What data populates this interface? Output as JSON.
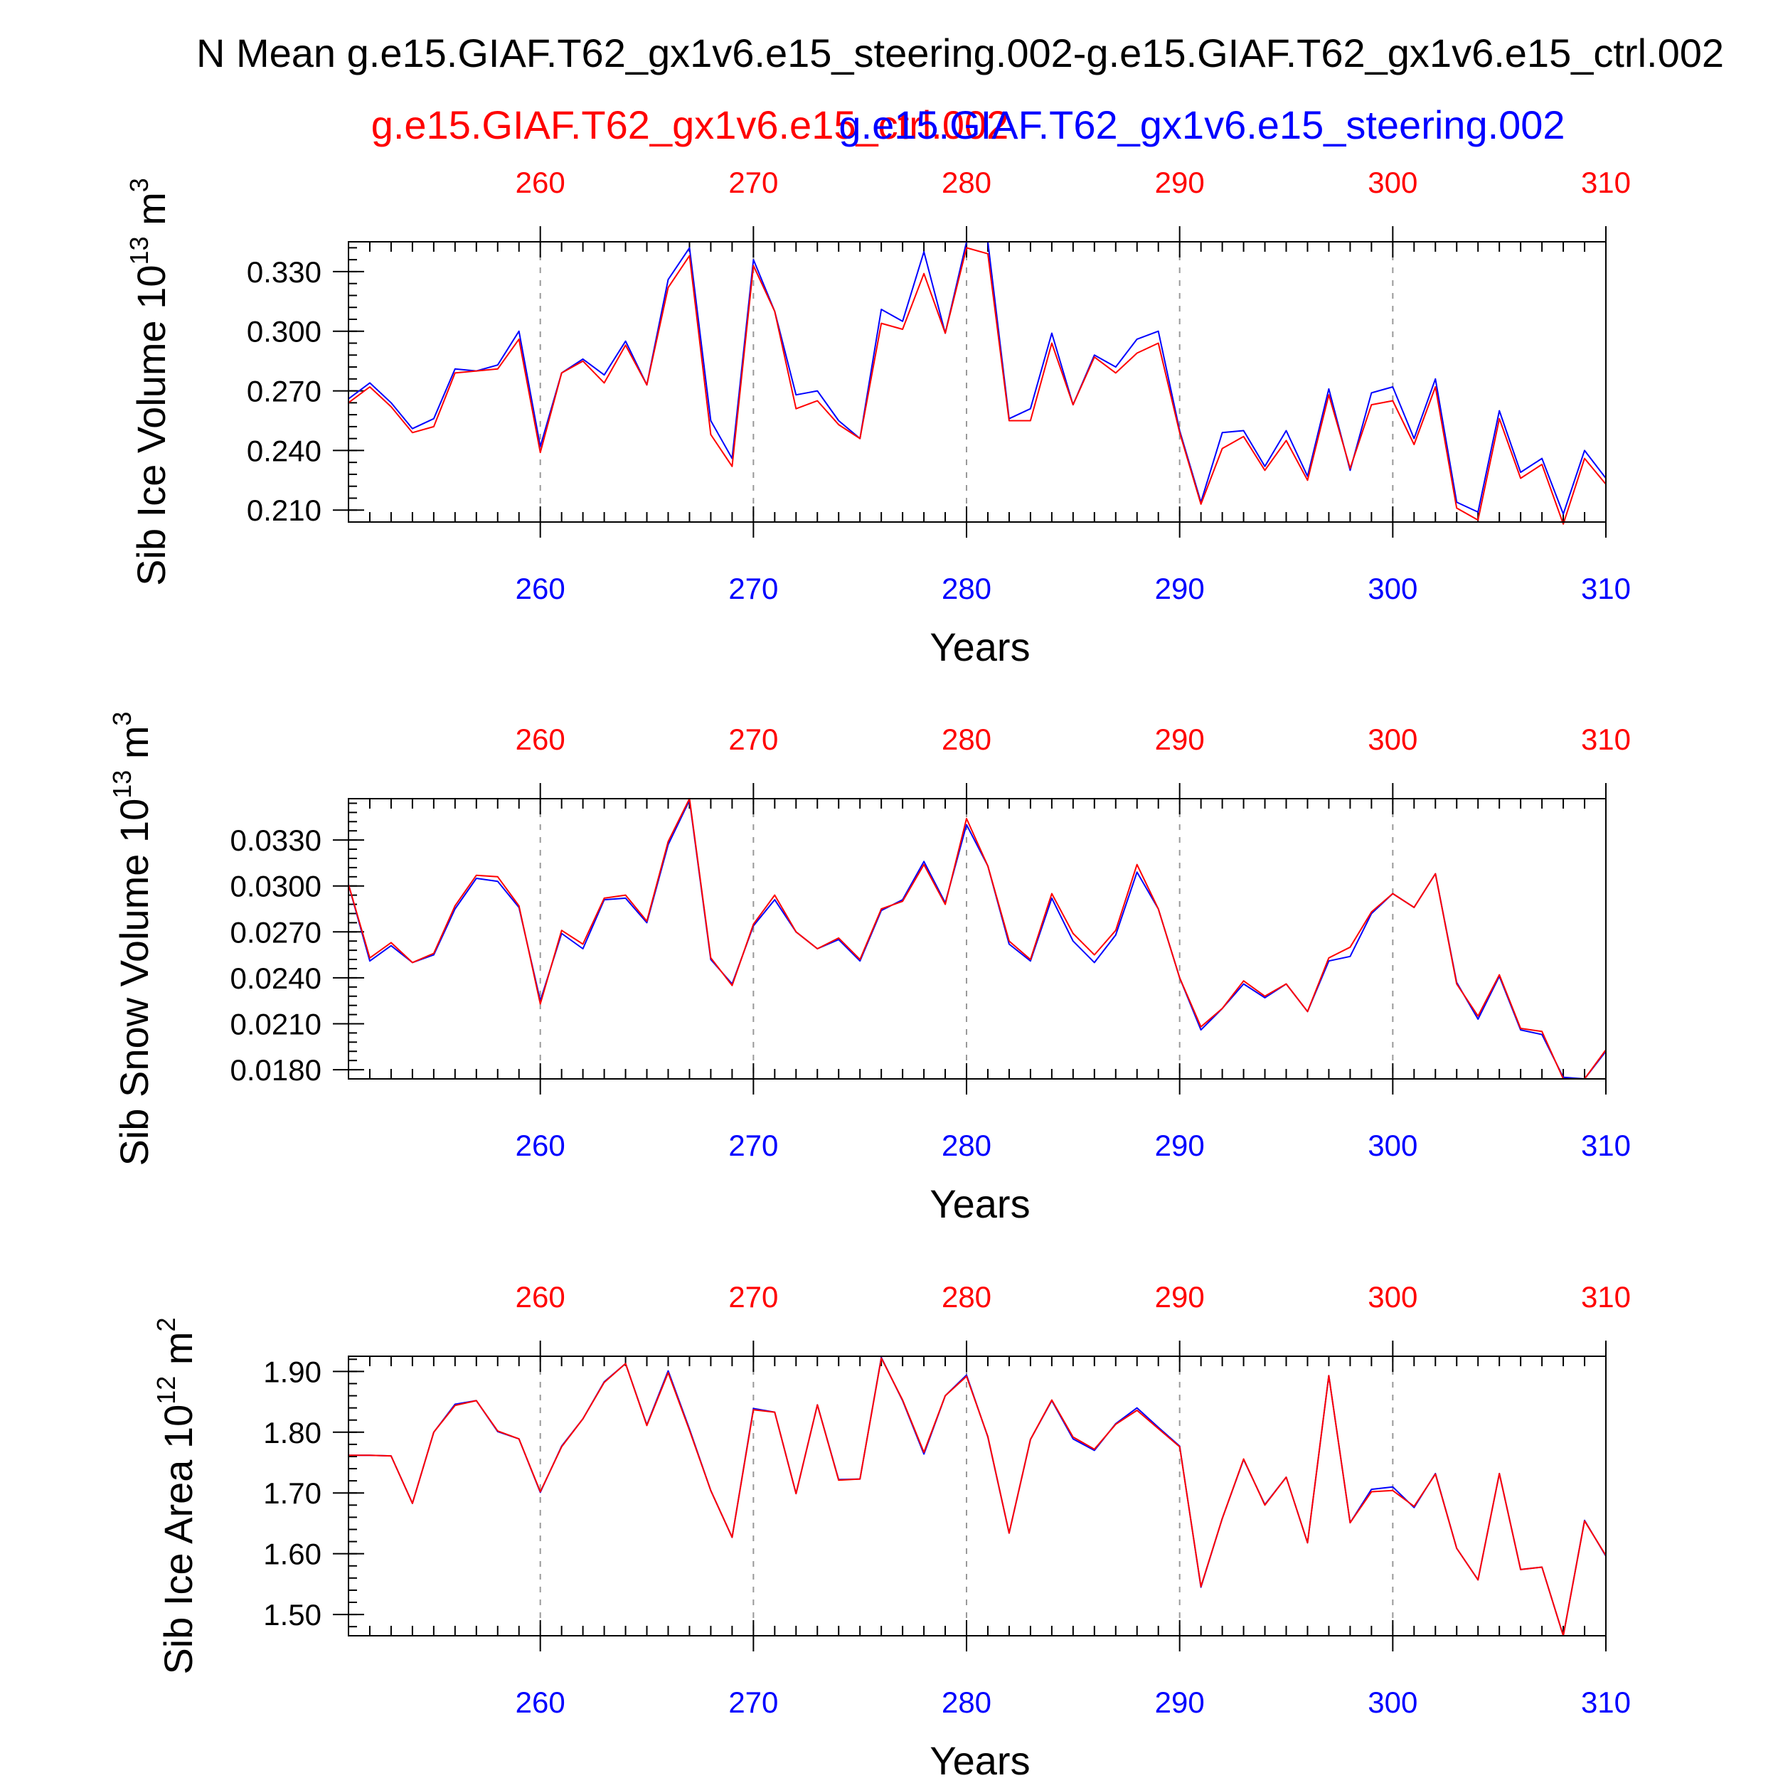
{
  "header": {
    "title": "N Mean g.e15.GIAF.T62_gx1v6.e15_steering.002-g.e15.GIAF.T62_gx1v6.e15_ctrl.002",
    "ctrl_case_label": "g.e15.GIAF.T62_gx1v6.e15_ctrl.002",
    "steering_case_label": "g.e15.GIAF.T62_gx1v6.e15_steering.002"
  },
  "colors": {
    "ctrl": "#ff0000",
    "steering": "#0000ff",
    "axis": "#000000",
    "grid": "#999999"
  },
  "chart_data": [
    {
      "type": "line",
      "title": "",
      "xlabel": "Years",
      "ylabel": "Sib Ice Volume 10",
      "ylabel_exp": "13",
      "ylabel_unit": " m",
      "ylabel_unit_exp": "3",
      "x_start": 251,
      "xlim": [
        251,
        310
      ],
      "ylim": [
        0.204,
        0.345
      ],
      "yticks": [
        0.21,
        0.24,
        0.27,
        0.3,
        0.33
      ],
      "ytick_labels": [
        "0.210",
        "0.240",
        "0.270",
        "0.300",
        "0.330"
      ],
      "y_minor_step": 0.006,
      "xticks": [
        260,
        270,
        280,
        290,
        300,
        310
      ],
      "xtick_labels": [
        "260",
        "270",
        "280",
        "290",
        "300",
        "310"
      ],
      "grid_x": true,
      "series": [
        {
          "name": "g.e15.GIAF.T62_gx1v6.e15_ctrl.002",
          "color": "#ff0000",
          "values": [
            0.264,
            0.272,
            0.262,
            0.249,
            0.252,
            0.279,
            0.28,
            0.281,
            0.296,
            0.239,
            0.279,
            0.285,
            0.274,
            0.293,
            0.273,
            0.322,
            0.338,
            0.248,
            0.232,
            0.333,
            0.31,
            0.261,
            0.265,
            0.253,
            0.246,
            0.304,
            0.301,
            0.329,
            0.299,
            0.342,
            0.339,
            0.255,
            0.255,
            0.294,
            0.263,
            0.287,
            0.279,
            0.289,
            0.294,
            0.249,
            0.213,
            0.241,
            0.247,
            0.23,
            0.245,
            0.225,
            0.268,
            0.231,
            0.263,
            0.265,
            0.243,
            0.272,
            0.211,
            0.205,
            0.256,
            0.226,
            0.233,
            0.203,
            0.236,
            0.223
          ]
        },
        {
          "name": "g.e15.GIAF.T62_gx1v6.e15_steering.002",
          "color": "#0000ff",
          "values": [
            0.266,
            0.274,
            0.264,
            0.251,
            0.256,
            0.281,
            0.28,
            0.283,
            0.3,
            0.242,
            0.279,
            0.286,
            0.278,
            0.295,
            0.273,
            0.326,
            0.342,
            0.255,
            0.236,
            0.336,
            0.31,
            0.268,
            0.27,
            0.255,
            0.246,
            0.311,
            0.305,
            0.34,
            0.299,
            0.345,
            0.345,
            0.256,
            0.261,
            0.299,
            0.263,
            0.288,
            0.282,
            0.296,
            0.3,
            0.25,
            0.214,
            0.249,
            0.25,
            0.232,
            0.25,
            0.227,
            0.271,
            0.23,
            0.269,
            0.272,
            0.246,
            0.276,
            0.214,
            0.209,
            0.26,
            0.229,
            0.236,
            0.208,
            0.24,
            0.226
          ]
        }
      ]
    },
    {
      "type": "line",
      "title": "",
      "xlabel": "Years",
      "ylabel": "Sib Snow Volume 10",
      "ylabel_exp": "13",
      "ylabel_unit": " m",
      "ylabel_unit_exp": "3",
      "x_start": 251,
      "xlim": [
        251,
        310
      ],
      "ylim": [
        0.0174,
        0.0357
      ],
      "yticks": [
        0.018,
        0.021,
        0.024,
        0.027,
        0.03,
        0.033
      ],
      "ytick_labels": [
        "0.0180",
        "0.0210",
        "0.0240",
        "0.0270",
        "0.0300",
        "0.0330"
      ],
      "y_minor_step": 0.0006,
      "xticks": [
        260,
        270,
        280,
        290,
        300,
        310
      ],
      "xtick_labels": [
        "260",
        "270",
        "280",
        "290",
        "300",
        "310"
      ],
      "grid_x": true,
      "series": [
        {
          "name": "g.e15.GIAF.T62_gx1v6.e15_ctrl.002",
          "color": "#ff0000",
          "values": [
            0.0301,
            0.0253,
            0.0263,
            0.025,
            0.0256,
            0.0287,
            0.0307,
            0.0306,
            0.0287,
            0.0223,
            0.0271,
            0.0262,
            0.0292,
            0.0294,
            0.0277,
            0.0329,
            0.0357,
            0.0253,
            0.0235,
            0.0275,
            0.0294,
            0.027,
            0.0259,
            0.0266,
            0.0252,
            0.0285,
            0.029,
            0.0314,
            0.0288,
            0.0344,
            0.0313,
            0.0264,
            0.0252,
            0.0295,
            0.0269,
            0.0255,
            0.0271,
            0.0314,
            0.0285,
            0.024,
            0.0208,
            0.022,
            0.0238,
            0.0228,
            0.0236,
            0.0218,
            0.0253,
            0.026,
            0.0283,
            0.0295,
            0.0286,
            0.0308,
            0.0236,
            0.0215,
            0.0242,
            0.0207,
            0.0205,
            0.0174,
            0.0174,
            0.0193
          ]
        },
        {
          "name": "g.e15.GIAF.T62_gx1v6.e15_steering.002",
          "color": "#0000ff",
          "values": [
            0.0301,
            0.0251,
            0.0261,
            0.025,
            0.0255,
            0.0285,
            0.0305,
            0.0303,
            0.0286,
            0.0225,
            0.0269,
            0.0259,
            0.0291,
            0.0292,
            0.0276,
            0.0327,
            0.0356,
            0.0252,
            0.0236,
            0.0274,
            0.0291,
            0.027,
            0.0259,
            0.0265,
            0.0251,
            0.0284,
            0.0291,
            0.0316,
            0.0289,
            0.034,
            0.0313,
            0.0262,
            0.0251,
            0.0292,
            0.0264,
            0.025,
            0.0268,
            0.0309,
            0.0285,
            0.024,
            0.0206,
            0.022,
            0.0236,
            0.0227,
            0.0236,
            0.0218,
            0.0251,
            0.0254,
            0.0282,
            0.0295,
            0.0286,
            0.0308,
            0.0237,
            0.0213,
            0.0241,
            0.0206,
            0.0203,
            0.0175,
            0.0174,
            0.0192
          ]
        }
      ]
    },
    {
      "type": "line",
      "title": "",
      "xlabel": "Years",
      "ylabel": "Sib Ice Area 10",
      "ylabel_exp": "12",
      "ylabel_unit": " m",
      "ylabel_unit_exp": "2",
      "x_start": 251,
      "xlim": [
        251,
        310
      ],
      "ylim": [
        1.465,
        1.925
      ],
      "yticks": [
        1.5,
        1.6,
        1.7,
        1.8,
        1.9
      ],
      "ytick_labels": [
        "1.50",
        "1.60",
        "1.70",
        "1.80",
        "1.90"
      ],
      "y_minor_step": 0.02,
      "xticks": [
        260,
        270,
        280,
        290,
        300,
        310
      ],
      "xtick_labels": [
        "260",
        "270",
        "280",
        "290",
        "300",
        "310"
      ],
      "grid_x": true,
      "series": [
        {
          "name": "g.e15.GIAF.T62_gx1v6.e15_ctrl.002",
          "color": "#ff0000",
          "values": [
            1.762,
            1.762,
            1.761,
            1.683,
            1.8,
            1.844,
            1.852,
            1.802,
            1.789,
            1.702,
            1.776,
            1.822,
            1.882,
            1.913,
            1.811,
            1.898,
            1.803,
            1.704,
            1.627,
            1.837,
            1.833,
            1.699,
            1.845,
            1.721,
            1.723,
            1.922,
            1.853,
            1.767,
            1.86,
            1.892,
            1.793,
            1.634,
            1.788,
            1.853,
            1.792,
            1.772,
            1.813,
            1.836,
            1.806,
            1.776,
            1.546,
            1.658,
            1.756,
            1.68,
            1.726,
            1.618,
            1.893,
            1.651,
            1.702,
            1.704,
            1.678,
            1.731,
            1.609,
            1.557,
            1.732,
            1.574,
            1.578,
            1.465,
            1.654,
            1.597
          ]
        },
        {
          "name": "g.e15.GIAF.T62_gx1v6.e15_steering.002",
          "color": "#0000ff",
          "values": [
            1.762,
            1.762,
            1.761,
            1.683,
            1.8,
            1.846,
            1.852,
            1.801,
            1.789,
            1.701,
            1.777,
            1.822,
            1.883,
            1.913,
            1.812,
            1.901,
            1.805,
            1.704,
            1.627,
            1.839,
            1.833,
            1.699,
            1.845,
            1.722,
            1.723,
            1.923,
            1.852,
            1.764,
            1.86,
            1.894,
            1.792,
            1.634,
            1.788,
            1.852,
            1.789,
            1.77,
            1.814,
            1.84,
            1.808,
            1.777,
            1.545,
            1.658,
            1.755,
            1.681,
            1.726,
            1.618,
            1.893,
            1.651,
            1.706,
            1.71,
            1.676,
            1.732,
            1.609,
            1.557,
            1.732,
            1.574,
            1.578,
            1.465,
            1.655,
            1.596
          ]
        }
      ]
    }
  ]
}
